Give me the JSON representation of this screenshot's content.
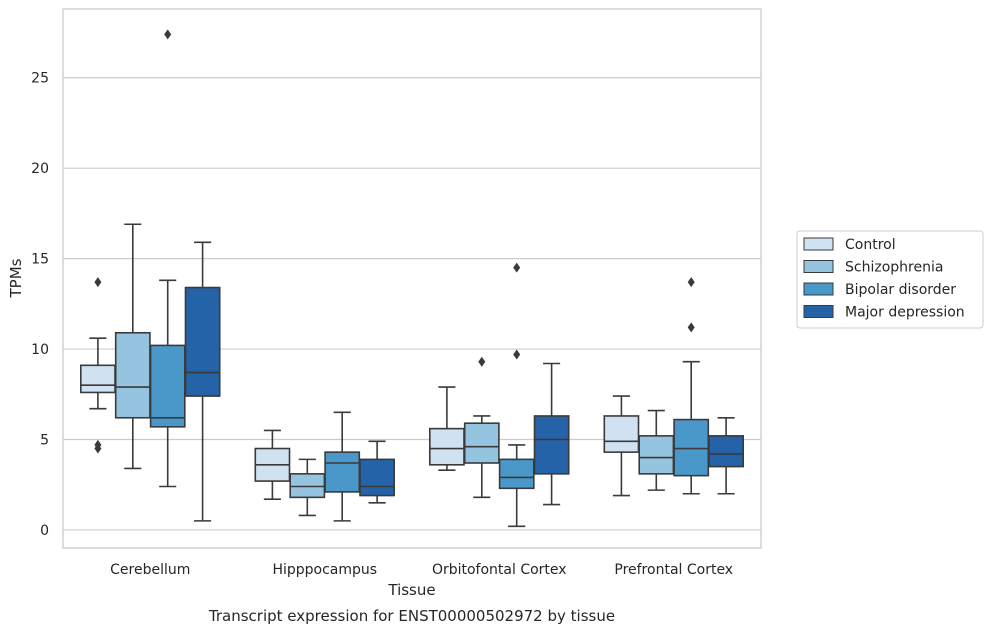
{
  "chart_data": {
    "type": "box",
    "xlabel": "Tissue",
    "ylabel": "TPMs",
    "caption": "Transcript expression for ENST00000502972 by tissue",
    "ylim": [
      -1,
      28.8
    ],
    "yticks": [
      0,
      5,
      10,
      15,
      20,
      25
    ],
    "grid": "horizontal",
    "legend_position": "right",
    "categories": [
      "Cerebellum",
      "Hipppocampus",
      "Orbitofontal Cortex",
      "Prefrontal Cortex"
    ],
    "series": [
      {
        "name": "Control",
        "color": "#d0e1f2",
        "boxes": [
          {
            "whislo": 6.7,
            "q1": 7.6,
            "med": 8.0,
            "q3": 9.1,
            "whishi": 10.6,
            "fliers": [
              13.7,
              4.7,
              4.5
            ]
          },
          {
            "whislo": 1.7,
            "q1": 2.7,
            "med": 3.6,
            "q3": 4.5,
            "whishi": 5.5,
            "fliers": []
          },
          {
            "whislo": 3.3,
            "q1": 3.6,
            "med": 4.5,
            "q3": 5.6,
            "whishi": 7.9,
            "fliers": []
          },
          {
            "whislo": 1.9,
            "q1": 4.3,
            "med": 4.9,
            "q3": 6.3,
            "whishi": 7.4,
            "fliers": []
          }
        ]
      },
      {
        "name": "Schizophrenia",
        "color": "#94c4df",
        "boxes": [
          {
            "whislo": 3.4,
            "q1": 6.2,
            "med": 7.9,
            "q3": 10.9,
            "whishi": 16.9,
            "fliers": []
          },
          {
            "whislo": 0.8,
            "q1": 1.8,
            "med": 2.4,
            "q3": 3.1,
            "whishi": 3.9,
            "fliers": []
          },
          {
            "whislo": 1.8,
            "q1": 3.7,
            "med": 4.6,
            "q3": 5.9,
            "whishi": 6.3,
            "fliers": [
              9.3
            ]
          },
          {
            "whislo": 2.2,
            "q1": 3.1,
            "med": 4.0,
            "q3": 5.2,
            "whishi": 6.6,
            "fliers": []
          }
        ]
      },
      {
        "name": "Bipolar disorder",
        "color": "#4a98c9",
        "boxes": [
          {
            "whislo": 2.4,
            "q1": 5.7,
            "med": 6.2,
            "q3": 10.2,
            "whishi": 13.8,
            "fliers": [
              27.4
            ]
          },
          {
            "whislo": 0.5,
            "q1": 2.1,
            "med": 3.7,
            "q3": 4.3,
            "whishi": 6.5,
            "fliers": []
          },
          {
            "whislo": 0.2,
            "q1": 2.3,
            "med": 2.9,
            "q3": 3.9,
            "whishi": 4.7,
            "fliers": [
              14.5,
              9.7
            ]
          },
          {
            "whislo": 2.0,
            "q1": 3.0,
            "med": 4.5,
            "q3": 6.1,
            "whishi": 9.3,
            "fliers": [
              13.7,
              11.2
            ]
          }
        ]
      },
      {
        "name": "Major depression",
        "color": "#2563a8",
        "boxes": [
          {
            "whislo": 0.5,
            "q1": 7.4,
            "med": 8.7,
            "q3": 13.4,
            "whishi": 15.9,
            "fliers": []
          },
          {
            "whislo": 1.5,
            "q1": 1.9,
            "med": 2.4,
            "q3": 3.9,
            "whishi": 4.9,
            "fliers": []
          },
          {
            "whislo": 1.4,
            "q1": 3.1,
            "med": 5.0,
            "q3": 6.3,
            "whishi": 9.2,
            "fliers": []
          },
          {
            "whislo": 2.0,
            "q1": 3.5,
            "med": 4.2,
            "q3": 5.2,
            "whishi": 6.2,
            "fliers": []
          }
        ]
      }
    ]
  }
}
